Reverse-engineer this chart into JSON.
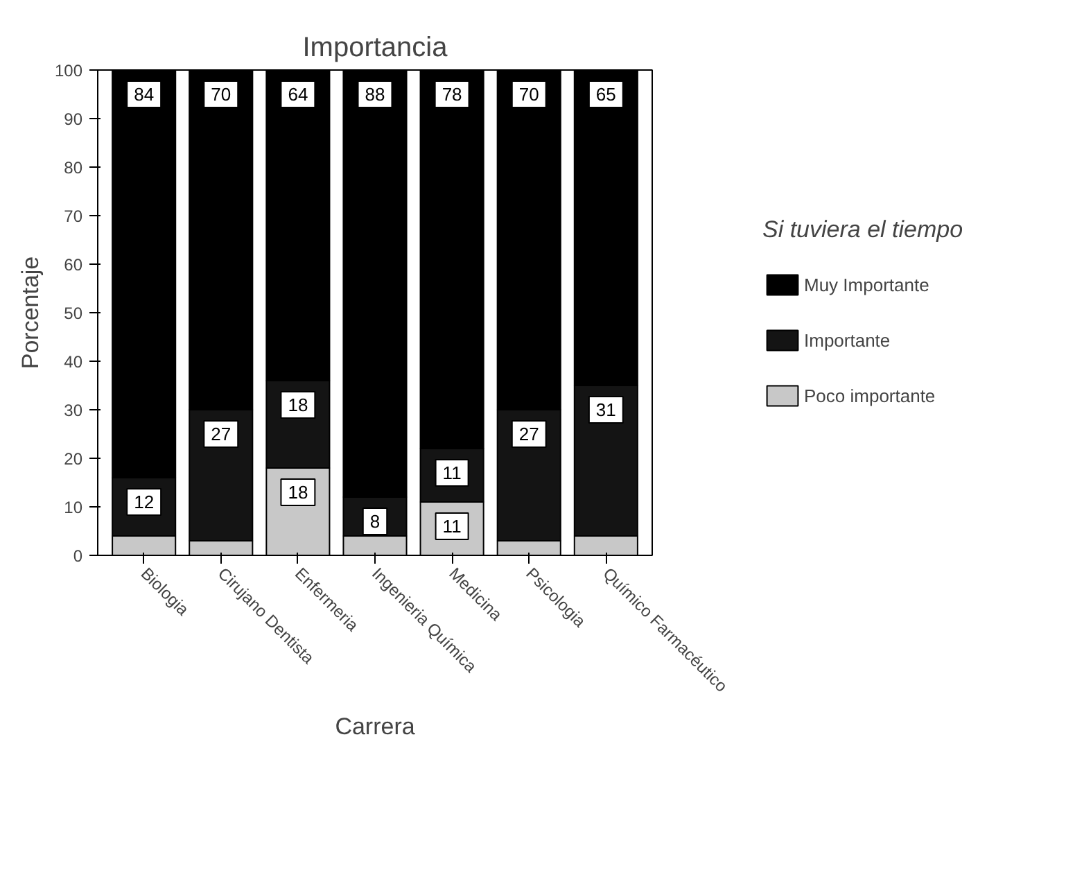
{
  "chart_data": {
    "type": "bar",
    "title": "Importancia",
    "xlabel": "Carrera",
    "ylabel": "Porcentaje",
    "legend_title": "Si tuviera el tiempo",
    "categories": [
      "Biologia",
      "Cirujano Dentista",
      "Enfermeria",
      "Ingenieria Química",
      "Medicina",
      "Psicologia",
      "Químico Farmacéutico"
    ],
    "stacked": true,
    "ylim": [
      0,
      100
    ],
    "yticks": [
      0,
      10,
      20,
      30,
      40,
      50,
      60,
      70,
      80,
      90,
      100
    ],
    "legend": "right",
    "grid": false,
    "series": [
      {
        "name": "Poco importante",
        "color": "#c8c8c8",
        "values": [
          4,
          3,
          18,
          4,
          11,
          3,
          4
        ],
        "value_labels": [
          null,
          null,
          "18",
          null,
          "11",
          null,
          null
        ]
      },
      {
        "name": "Importante",
        "color": "#141414",
        "values": [
          12,
          27,
          18,
          8,
          11,
          27,
          31
        ],
        "value_labels": [
          "12",
          "27",
          "18",
          "8",
          "11",
          "27",
          "31"
        ]
      },
      {
        "name": "Muy Importante",
        "color": "#000000",
        "values": [
          84,
          70,
          64,
          88,
          78,
          70,
          65
        ],
        "value_labels": [
          "84",
          "70",
          "64",
          "88",
          "78",
          "70",
          "65"
        ]
      }
    ]
  }
}
